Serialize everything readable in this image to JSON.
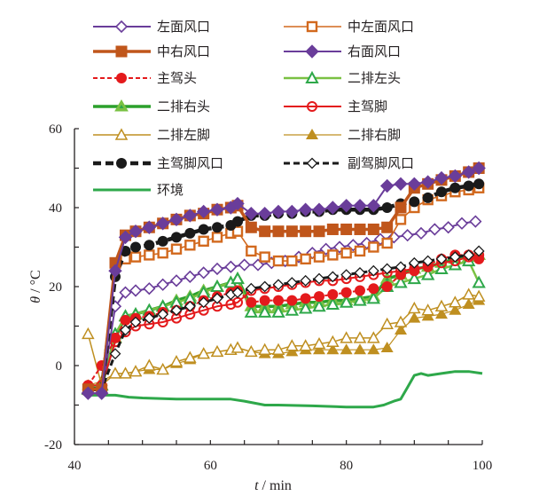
{
  "chart_data": {
    "type": "line",
    "title": "",
    "xlabel_var": "t",
    "xlabel_unit": "min",
    "ylabel_var": "θ",
    "ylabel_unit": "°C",
    "xlim": [
      40,
      100
    ],
    "ylim": [
      -20,
      60
    ],
    "xticks": [
      40,
      60,
      80,
      100
    ],
    "xminor": [
      45,
      50,
      55,
      65,
      70,
      75,
      85,
      90,
      95
    ],
    "yticks": [
      -20,
      0,
      20,
      40,
      60
    ],
    "yminor": [
      -10,
      10,
      30,
      50
    ],
    "grid": false,
    "legend_position": "top-inside",
    "series": [
      {
        "name": "左面风口",
        "color": "#6a3d9a",
        "marker": "diamond-open",
        "dash": "solid",
        "x": [
          42,
          44,
          46,
          47.5,
          49,
          51,
          53,
          55,
          57,
          59,
          61,
          63,
          65,
          67,
          69,
          71,
          73,
          75,
          77,
          79,
          81,
          83,
          85,
          87,
          89,
          91,
          93,
          95,
          97,
          99
        ],
        "y": [
          -7,
          -7,
          15,
          18.5,
          19,
          19.5,
          20.5,
          21.5,
          22.5,
          23.5,
          24.5,
          25,
          25.5,
          25.5,
          26,
          26.5,
          27.5,
          28.5,
          29.5,
          30,
          30.5,
          31,
          32,
          32.5,
          33,
          33.5,
          34.5,
          35,
          36,
          36.5
        ]
      },
      {
        "name": "中左面风口",
        "color": "#d2691e",
        "marker": "square-open",
        "dash": "solid",
        "x": [
          42,
          44,
          46,
          47.5,
          49,
          51,
          53,
          55,
          57,
          59,
          61,
          63,
          64,
          66,
          68,
          70,
          72,
          74,
          76,
          78,
          80,
          82,
          84,
          86,
          88,
          90,
          92,
          94,
          96,
          98,
          99.5
        ],
        "y": [
          -6,
          -6,
          26,
          27,
          27.5,
          28,
          28.5,
          29.5,
          30.5,
          31.5,
          32.5,
          33.5,
          34,
          29,
          27.5,
          26.5,
          26.5,
          27,
          27.5,
          28,
          28.5,
          29,
          30,
          31,
          37,
          40,
          42,
          43,
          44,
          44.5,
          45
        ]
      },
      {
        "name": "中右风口",
        "color": "#c0561b",
        "marker": "square-filled",
        "dash": "solid",
        "x": [
          42,
          44,
          46,
          47.5,
          49,
          51,
          53,
          55,
          57,
          59,
          61,
          63,
          64,
          66,
          68,
          70,
          72,
          74,
          76,
          78,
          80,
          82,
          84,
          86,
          88,
          90,
          92,
          94,
          96,
          98,
          99.5
        ],
        "y": [
          -6,
          -6,
          26,
          33,
          34,
          35,
          36,
          37,
          38,
          38.5,
          39.5,
          40,
          40.5,
          35,
          34,
          34,
          34,
          34,
          34,
          34.5,
          34.5,
          34.5,
          34.5,
          35,
          40,
          45,
          46,
          47,
          48,
          49,
          50
        ]
      },
      {
        "name": "右面风口",
        "color": "#6a3d9a",
        "marker": "diamond-filled",
        "dash": "solid",
        "x": [
          42,
          44,
          46,
          47.5,
          49,
          51,
          53,
          55,
          57,
          59,
          61,
          63,
          64,
          66,
          68,
          70,
          72,
          74,
          76,
          78,
          80,
          82,
          84,
          86,
          88,
          90,
          92,
          94,
          96,
          98,
          99.5
        ],
        "y": [
          -7,
          -7,
          24,
          32.5,
          34,
          35,
          36,
          37,
          38,
          39,
          39.5,
          40,
          41,
          38.5,
          38.5,
          39,
          39,
          39.5,
          39.5,
          40,
          40.5,
          40.5,
          40.5,
          45.5,
          46,
          46,
          46.5,
          47.5,
          48,
          49,
          50
        ]
      },
      {
        "name": "主驾头",
        "color": "#e41a1c",
        "marker": "circle-filled",
        "dash": "dashed",
        "x": [
          42,
          44,
          46,
          47.5,
          49,
          51,
          53,
          55,
          57,
          59,
          61,
          63,
          64,
          66,
          68,
          70,
          72,
          74,
          76,
          78,
          80,
          82,
          84,
          86,
          88,
          90,
          92,
          94,
          96,
          98,
          99.5
        ],
        "y": [
          -5,
          0,
          7,
          11.5,
          12,
          12.5,
          13.5,
          14,
          15,
          16.5,
          17.5,
          18.5,
          19,
          16,
          16.5,
          16.5,
          16.5,
          17,
          17.5,
          18,
          18.5,
          19,
          19.5,
          20,
          23,
          24,
          25.5,
          27,
          28,
          28,
          27
        ]
      },
      {
        "name": "二排左头",
        "color": "#7ac143",
        "marker": "triangle-open-green",
        "dash": "solid",
        "x": [
          42,
          44,
          46,
          47.5,
          49,
          51,
          53,
          55,
          57,
          59,
          61,
          63,
          64,
          66,
          68,
          70,
          72,
          74,
          76,
          78,
          80,
          82,
          84,
          86,
          88,
          90,
          92,
          94,
          96,
          98,
          99.5
        ],
        "y": [
          -6,
          -5,
          8,
          12.5,
          13,
          14,
          15,
          16,
          17,
          18.5,
          20,
          21,
          22,
          13.5,
          13.5,
          13.5,
          14,
          14.5,
          15,
          15.5,
          16,
          16.5,
          17,
          20,
          21,
          22,
          23,
          24.5,
          25.5,
          26.5,
          21
        ]
      },
      {
        "name": "二排右头",
        "color": "#2ca02c",
        "marker": "triangle-filled-light",
        "dash": "solid",
        "x": [
          42,
          44,
          46,
          47.5,
          49,
          51,
          53,
          55,
          57,
          59,
          61,
          63,
          64,
          66,
          68,
          70,
          72,
          74,
          76,
          78,
          80,
          82,
          84,
          86,
          88,
          90,
          92,
          94,
          96,
          98,
          99.5
        ],
        "y": [
          -6,
          -5,
          7,
          12.5,
          13,
          14,
          15,
          16.5,
          17.5,
          19,
          20,
          21,
          22,
          15,
          15,
          15,
          15.5,
          16,
          16,
          16.5,
          16.5,
          17,
          17.5,
          22,
          23,
          24.5,
          25,
          26,
          27,
          27.5,
          28
        ]
      },
      {
        "name": "主驾脚",
        "color": "#e41a1c",
        "marker": "circle-open",
        "dash": "solid",
        "x": [
          42,
          44,
          46,
          47.5,
          49,
          51,
          53,
          55,
          57,
          59,
          61,
          63,
          64,
          66,
          68,
          70,
          72,
          74,
          76,
          78,
          80,
          82,
          84,
          86,
          88,
          90,
          92,
          94,
          96,
          98,
          99.5
        ],
        "y": [
          -5,
          -5,
          6,
          8.5,
          10,
          10.5,
          11,
          12,
          13,
          14,
          15,
          15.5,
          16,
          19,
          19.5,
          20,
          20.5,
          21,
          21.5,
          21.5,
          22,
          22.5,
          23,
          23.5,
          24,
          24.5,
          25,
          26,
          26.5,
          27.5,
          28
        ]
      },
      {
        "name": "二排左脚",
        "color": "#bf8f20",
        "marker": "triangle-open",
        "dash": "solid",
        "x": [
          42,
          44,
          46,
          47.5,
          49,
          51,
          53,
          55,
          57,
          59,
          61,
          63,
          64,
          66,
          68,
          70,
          72,
          74,
          76,
          78,
          80,
          82,
          84,
          86,
          88,
          90,
          92,
          94,
          96,
          98,
          99.5
        ],
        "y": [
          8,
          -5,
          -2,
          -2,
          -1.5,
          0,
          -1,
          1,
          2,
          3,
          3.5,
          4,
          4.5,
          3.5,
          4,
          4,
          5,
          5,
          5.5,
          6,
          7,
          7,
          7,
          10.5,
          11,
          14.5,
          14,
          15,
          16,
          18,
          17.5
        ]
      },
      {
        "name": "二排右脚",
        "color": "#bf8f20",
        "marker": "triangle-filled",
        "dash": "solid",
        "x": [
          42,
          44,
          46,
          47.5,
          49,
          51,
          53,
          55,
          57,
          59,
          61,
          63,
          64,
          66,
          68,
          70,
          72,
          74,
          76,
          78,
          80,
          82,
          84,
          86,
          88,
          90,
          92,
          94,
          96,
          98,
          99.5
        ],
        "y": [
          -5,
          -4,
          -2,
          -2,
          -1.5,
          -1,
          -1,
          0.5,
          1.5,
          3,
          3.5,
          4,
          4.5,
          3.5,
          3,
          3,
          3.5,
          4,
          4,
          4,
          4,
          4,
          4,
          4.5,
          9,
          12,
          12.5,
          13,
          14,
          15.5,
          16.5
        ]
      },
      {
        "name": "主驾脚风口",
        "color": "#1a1a1a",
        "marker": "circle-filled",
        "dash": "dashed",
        "x": [
          42,
          44,
          46,
          47.5,
          49,
          51,
          53,
          55,
          57,
          59,
          61,
          63,
          64,
          66,
          68,
          70,
          72,
          74,
          76,
          78,
          80,
          82,
          84,
          86,
          88,
          90,
          92,
          94,
          96,
          98,
          99.5
        ],
        "y": [
          -6,
          -6,
          22.5,
          29,
          30,
          30.5,
          31.5,
          32.5,
          33.5,
          34.5,
          35,
          35.5,
          36.5,
          38,
          38,
          38.5,
          38.5,
          39,
          39,
          39.5,
          39.5,
          39.5,
          39.5,
          40,
          41,
          41.5,
          42.5,
          44,
          45,
          45.5,
          46
        ]
      },
      {
        "name": "副驾脚风口",
        "color": "#1a1a1a",
        "marker": "diamond-open-black",
        "dash": "dashed",
        "x": [
          42,
          44,
          46,
          47.5,
          49,
          51,
          53,
          55,
          57,
          59,
          61,
          63,
          64,
          66,
          68,
          70,
          72,
          74,
          76,
          78,
          80,
          82,
          84,
          86,
          88,
          90,
          92,
          94,
          96,
          98,
          99.5
        ],
        "y": [
          -6,
          -6,
          3,
          9,
          11,
          12,
          13,
          14,
          15,
          16,
          17,
          18,
          18.5,
          19.5,
          20,
          20.5,
          21,
          21.5,
          22,
          22.5,
          23,
          23.5,
          24,
          24.5,
          25,
          26,
          26.5,
          27,
          27.5,
          28,
          29
        ]
      },
      {
        "name": "环境",
        "color": "#2ea84a",
        "marker": "none",
        "dash": "solid",
        "x": [
          42,
          44,
          46,
          48,
          50,
          55,
          60,
          63,
          65,
          68,
          70,
          75,
          80,
          82,
          84,
          85.5,
          87,
          88,
          89,
          90,
          91,
          92,
          94,
          96,
          98,
          100
        ],
        "y": [
          -7.5,
          -7.5,
          -7.5,
          -8,
          -8.2,
          -8.5,
          -8.5,
          -8.5,
          -9,
          -10,
          -10,
          -10.2,
          -10.5,
          -10.5,
          -10.5,
          -10,
          -9,
          -8.5,
          -5.5,
          -2.5,
          -2,
          -2.5,
          -2,
          -1.5,
          -1.5,
          -2
        ]
      }
    ]
  }
}
